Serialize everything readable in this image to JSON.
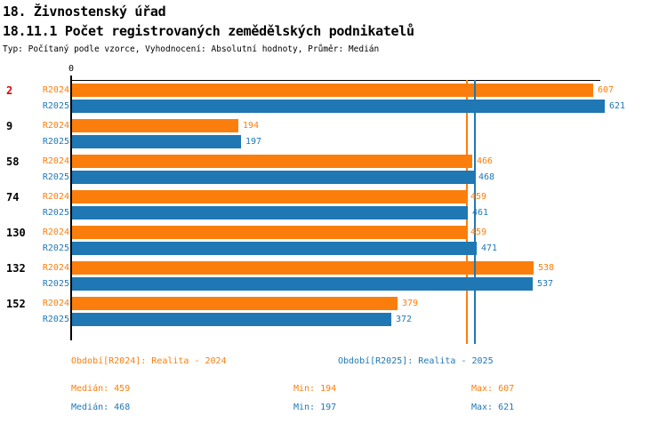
{
  "header": {
    "title": "18. Živnostenský úřad",
    "subtitle": "18.11.1 Počet registrovaných zemědělských podnikatelů",
    "meta": "Typ: Počítaný podle vzorce, Vyhodnocení: Absolutní hodnoty, Průměr: Medián"
  },
  "colors": {
    "r2024": "#FB7E0D",
    "r2025": "#1F77B4",
    "highlighted_category": "#DD0000",
    "category_text": "#000000",
    "axis": "#000000"
  },
  "chart_data": {
    "type": "bar",
    "orientation": "horizontal",
    "origin_label": "0",
    "xlim": [
      0,
      621
    ],
    "grid": false,
    "categories": [
      "2",
      "9",
      "58",
      "74",
      "130",
      "132",
      "152"
    ],
    "highlighted_category": "2",
    "series": [
      {
        "name": "R2024",
        "color": "#FB7E0D",
        "values": [
          607,
          194,
          466,
          459,
          459,
          538,
          379
        ],
        "median_line": 459
      },
      {
        "name": "R2025",
        "color": "#1F77B4",
        "values": [
          621,
          197,
          468,
          461,
          471,
          537,
          372
        ],
        "median_line": 468
      }
    ]
  },
  "legend": {
    "r2024": "Období[R2024]: Realita - 2024",
    "r2025": "Období[R2025]: Realita - 2025"
  },
  "stats": {
    "r2024": {
      "median": "Medián: 459",
      "min": "Min: 194",
      "max": "Max: 607"
    },
    "r2025": {
      "median": "Medián: 468",
      "min": "Min: 197",
      "max": "Max: 621"
    }
  }
}
